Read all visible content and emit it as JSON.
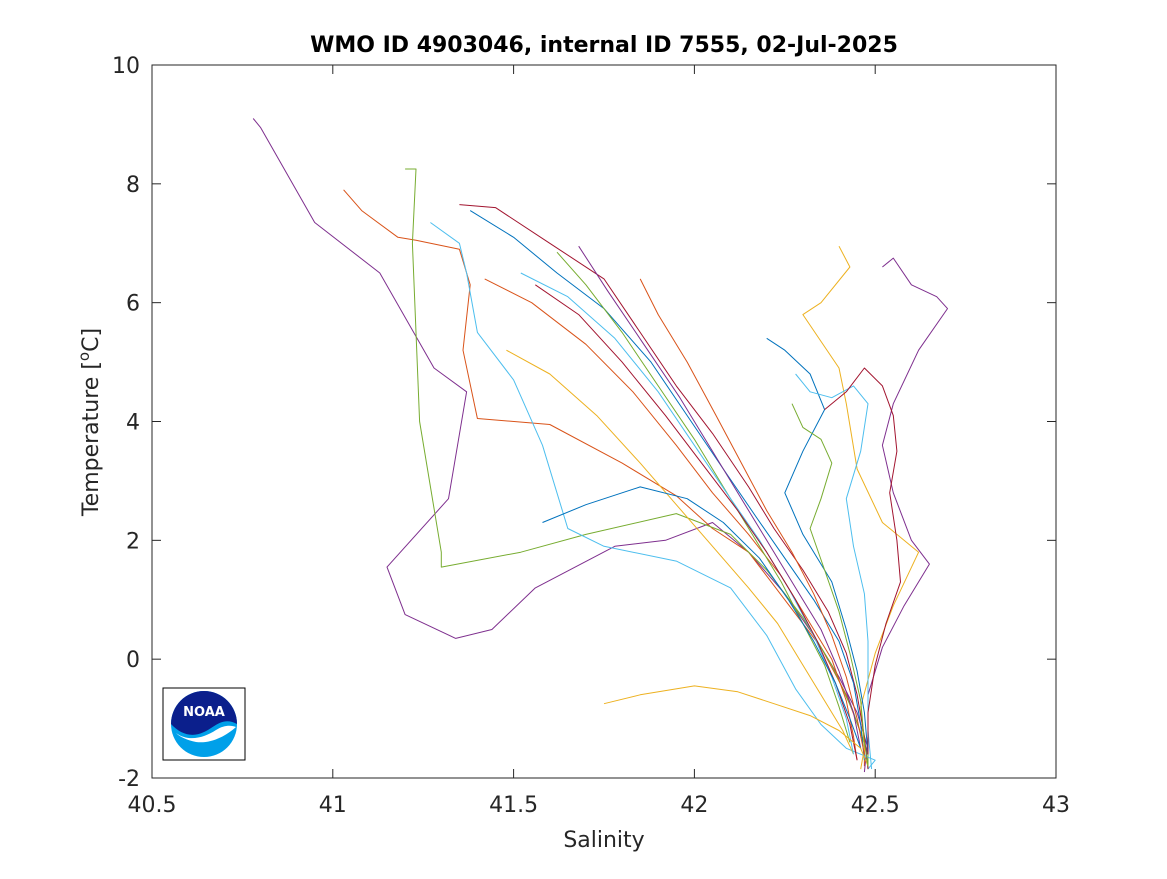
{
  "chart_data": {
    "type": "line",
    "title": "WMO ID 4903046, internal ID 7555, 02-Jul-2025",
    "xlabel": "Salinity",
    "ylabel_main": "Temperature [",
    "ylabel_sup": "o",
    "ylabel_end": "C]",
    "xlim": [
      40.5,
      43
    ],
    "ylim": [
      -2,
      10
    ],
    "xticks": [
      40.5,
      41,
      41.5,
      42,
      42.5,
      43
    ],
    "yticks": [
      -2,
      0,
      2,
      4,
      6,
      8,
      10
    ],
    "xtick_labels": [
      "40.5",
      "41",
      "41.5",
      "42",
      "42.5",
      "43"
    ],
    "ytick_labels": [
      "-2",
      "0",
      "2",
      "4",
      "6",
      "8",
      "10"
    ],
    "grid": false,
    "logo": {
      "name": "noaa-logo",
      "text": "NOAA"
    },
    "palette": [
      "#0072bd",
      "#d95319",
      "#edb120",
      "#7e2f8e",
      "#77ac30",
      "#4dbeee",
      "#a2142f"
    ],
    "series": [
      {
        "color": "#7e2f8e",
        "points": [
          [
            40.78,
            9.1
          ],
          [
            40.8,
            8.95
          ],
          [
            40.95,
            7.35
          ],
          [
            41.13,
            6.5
          ],
          [
            41.28,
            4.9
          ],
          [
            41.37,
            4.5
          ],
          [
            41.32,
            2.7
          ],
          [
            41.15,
            1.55
          ],
          [
            41.2,
            0.75
          ],
          [
            41.34,
            0.35
          ],
          [
            41.44,
            0.5
          ],
          [
            41.56,
            1.2
          ],
          [
            41.78,
            1.9
          ],
          [
            41.92,
            2.0
          ],
          [
            42.05,
            2.3
          ],
          [
            42.15,
            1.8
          ],
          [
            42.25,
            1.1
          ],
          [
            42.33,
            0.4
          ],
          [
            42.4,
            -0.3
          ],
          [
            42.45,
            -0.9
          ],
          [
            42.48,
            -1.5
          ],
          [
            42.47,
            -1.8
          ]
        ]
      },
      {
        "color": "#d95319",
        "points": [
          [
            41.03,
            7.9
          ],
          [
            41.08,
            7.55
          ],
          [
            41.18,
            7.1
          ],
          [
            41.23,
            7.05
          ],
          [
            41.35,
            6.9
          ],
          [
            41.38,
            6.3
          ],
          [
            41.36,
            5.2
          ],
          [
            41.4,
            4.05
          ],
          [
            41.6,
            3.95
          ],
          [
            41.8,
            3.3
          ],
          [
            41.95,
            2.75
          ],
          [
            42.05,
            2.2
          ],
          [
            42.15,
            1.8
          ],
          [
            42.25,
            1.0
          ],
          [
            42.35,
            0.2
          ],
          [
            42.42,
            -0.6
          ],
          [
            42.47,
            -1.4
          ],
          [
            42.47,
            -1.8
          ]
        ]
      },
      {
        "color": "#77ac30",
        "points": [
          [
            41.2,
            8.25
          ],
          [
            41.23,
            8.25
          ],
          [
            41.22,
            7.0
          ],
          [
            41.24,
            4.0
          ],
          [
            41.3,
            1.8
          ],
          [
            41.3,
            1.55
          ],
          [
            41.52,
            1.8
          ],
          [
            41.7,
            2.1
          ],
          [
            41.95,
            2.45
          ],
          [
            42.1,
            2.1
          ],
          [
            42.2,
            1.5
          ],
          [
            42.3,
            0.7
          ],
          [
            42.38,
            -0.1
          ],
          [
            42.44,
            -0.9
          ],
          [
            42.48,
            -1.6
          ],
          [
            42.48,
            -1.85
          ]
        ]
      },
      {
        "color": "#edb120",
        "points": [
          [
            42.4,
            6.95
          ],
          [
            42.43,
            6.6
          ],
          [
            42.35,
            6.0
          ],
          [
            42.3,
            5.8
          ],
          [
            42.4,
            4.9
          ],
          [
            42.42,
            4.3
          ],
          [
            42.45,
            3.2
          ],
          [
            42.52,
            2.3
          ],
          [
            42.62,
            1.8
          ],
          [
            42.55,
            0.9
          ],
          [
            42.5,
            0.1
          ],
          [
            42.46,
            -0.8
          ],
          [
            42.47,
            -1.5
          ],
          [
            42.46,
            -1.85
          ]
        ]
      },
      {
        "color": "#7e2f8e",
        "points": [
          [
            42.52,
            6.6
          ],
          [
            42.55,
            6.75
          ],
          [
            42.6,
            6.3
          ],
          [
            42.67,
            6.1
          ],
          [
            42.7,
            5.9
          ],
          [
            42.62,
            5.2
          ],
          [
            42.55,
            4.3
          ],
          [
            42.52,
            3.6
          ],
          [
            42.55,
            2.8
          ],
          [
            42.6,
            2.0
          ],
          [
            42.65,
            1.6
          ],
          [
            42.58,
            0.9
          ],
          [
            42.52,
            0.2
          ],
          [
            42.48,
            -0.6
          ],
          [
            42.48,
            -1.3
          ],
          [
            42.47,
            -1.9
          ]
        ]
      },
      {
        "color": "#0072bd",
        "points": [
          [
            42.2,
            5.4
          ],
          [
            42.25,
            5.2
          ],
          [
            42.32,
            4.8
          ],
          [
            42.36,
            4.2
          ],
          [
            42.3,
            3.5
          ],
          [
            42.25,
            2.8
          ],
          [
            42.3,
            2.1
          ],
          [
            42.38,
            1.3
          ],
          [
            42.42,
            0.5
          ],
          [
            42.45,
            -0.2
          ],
          [
            42.47,
            -0.9
          ],
          [
            42.48,
            -1.6
          ]
        ]
      },
      {
        "color": "#4dbeee",
        "points": [
          [
            41.27,
            7.35
          ],
          [
            41.35,
            7.0
          ],
          [
            41.37,
            6.5
          ],
          [
            41.4,
            5.5
          ],
          [
            41.5,
            4.7
          ],
          [
            41.58,
            3.6
          ],
          [
            41.65,
            2.2
          ],
          [
            41.75,
            1.9
          ],
          [
            41.95,
            1.65
          ],
          [
            42.1,
            1.2
          ],
          [
            42.2,
            0.4
          ],
          [
            42.28,
            -0.5
          ],
          [
            42.35,
            -1.1
          ],
          [
            42.42,
            -1.5
          ],
          [
            42.5,
            -1.7
          ],
          [
            42.48,
            -1.85
          ]
        ]
      },
      {
        "color": "#a2142f",
        "points": [
          [
            41.35,
            7.65
          ],
          [
            41.45,
            7.6
          ],
          [
            41.6,
            7.0
          ],
          [
            41.75,
            6.4
          ],
          [
            41.85,
            5.5
          ],
          [
            41.95,
            4.6
          ],
          [
            42.05,
            3.8
          ],
          [
            42.15,
            2.9
          ],
          [
            42.22,
            2.2
          ],
          [
            42.3,
            1.5
          ],
          [
            42.37,
            0.8
          ],
          [
            42.42,
            0.1
          ],
          [
            42.45,
            -0.6
          ],
          [
            42.47,
            -1.3
          ],
          [
            42.48,
            -1.85
          ]
        ]
      },
      {
        "color": "#0072bd",
        "points": [
          [
            41.38,
            7.55
          ],
          [
            41.5,
            7.1
          ],
          [
            41.62,
            6.5
          ],
          [
            41.75,
            5.9
          ],
          [
            41.88,
            5.0
          ],
          [
            41.98,
            4.1
          ],
          [
            42.08,
            3.2
          ],
          [
            42.17,
            2.4
          ],
          [
            42.25,
            1.7
          ],
          [
            42.33,
            1.0
          ],
          [
            42.4,
            0.3
          ],
          [
            42.44,
            -0.4
          ],
          [
            42.46,
            -1.1
          ],
          [
            42.47,
            -1.7
          ]
        ]
      },
      {
        "color": "#d95319",
        "points": [
          [
            41.42,
            6.4
          ],
          [
            41.55,
            6.0
          ],
          [
            41.7,
            5.3
          ],
          [
            41.83,
            4.5
          ],
          [
            41.95,
            3.6
          ],
          [
            42.05,
            2.8
          ],
          [
            42.15,
            2.1
          ],
          [
            42.24,
            1.4
          ],
          [
            42.32,
            0.6
          ],
          [
            42.38,
            0.0
          ],
          [
            42.42,
            -0.7
          ],
          [
            42.44,
            -1.3
          ],
          [
            42.45,
            -1.7
          ]
        ]
      },
      {
        "color": "#edb120",
        "points": [
          [
            41.48,
            5.2
          ],
          [
            41.6,
            4.8
          ],
          [
            41.73,
            4.1
          ],
          [
            41.85,
            3.3
          ],
          [
            41.95,
            2.6
          ],
          [
            42.05,
            1.9
          ],
          [
            42.15,
            1.2
          ],
          [
            42.23,
            0.6
          ],
          [
            42.3,
            -0.1
          ],
          [
            42.36,
            -0.7
          ],
          [
            42.41,
            -1.2
          ],
          [
            42.44,
            -1.6
          ]
        ]
      },
      {
        "color": "#77ac30",
        "points": [
          [
            41.62,
            6.85
          ],
          [
            41.7,
            6.3
          ],
          [
            41.8,
            5.5
          ],
          [
            41.9,
            4.6
          ],
          [
            42.0,
            3.7
          ],
          [
            42.08,
            2.9
          ],
          [
            42.16,
            2.1
          ],
          [
            42.24,
            1.3
          ],
          [
            42.3,
            0.6
          ],
          [
            42.36,
            -0.1
          ],
          [
            42.4,
            -0.8
          ],
          [
            42.43,
            -1.4
          ]
        ]
      },
      {
        "color": "#4dbeee",
        "points": [
          [
            41.52,
            6.5
          ],
          [
            41.65,
            6.1
          ],
          [
            41.78,
            5.4
          ],
          [
            41.9,
            4.5
          ],
          [
            42.0,
            3.6
          ],
          [
            42.1,
            2.7
          ],
          [
            42.18,
            2.0
          ],
          [
            42.26,
            1.2
          ],
          [
            42.33,
            0.4
          ],
          [
            42.38,
            -0.3
          ],
          [
            42.42,
            -1.0
          ],
          [
            42.44,
            -1.6
          ]
        ]
      },
      {
        "color": "#7e2f8e",
        "points": [
          [
            41.68,
            6.95
          ],
          [
            41.76,
            6.2
          ],
          [
            41.86,
            5.3
          ],
          [
            41.96,
            4.4
          ],
          [
            42.05,
            3.5
          ],
          [
            42.13,
            2.7
          ],
          [
            42.2,
            2.0
          ],
          [
            42.28,
            1.2
          ],
          [
            42.35,
            0.5
          ],
          [
            42.4,
            -0.2
          ],
          [
            42.44,
            -0.9
          ],
          [
            42.46,
            -1.5
          ]
        ]
      },
      {
        "color": "#a2142f",
        "points": [
          [
            41.56,
            6.3
          ],
          [
            41.68,
            5.8
          ],
          [
            41.8,
            5.0
          ],
          [
            41.92,
            4.1
          ],
          [
            42.02,
            3.3
          ],
          [
            42.12,
            2.5
          ],
          [
            42.2,
            1.8
          ],
          [
            42.28,
            1.0
          ],
          [
            42.34,
            0.3
          ],
          [
            42.39,
            -0.4
          ],
          [
            42.43,
            -1.1
          ],
          [
            42.45,
            -1.7
          ]
        ]
      },
      {
        "color": "#0072bd",
        "points": [
          [
            41.58,
            2.3
          ],
          [
            41.7,
            2.6
          ],
          [
            41.85,
            2.9
          ],
          [
            41.98,
            2.7
          ],
          [
            42.08,
            2.3
          ],
          [
            42.18,
            1.7
          ],
          [
            42.26,
            1.0
          ],
          [
            42.33,
            0.3
          ],
          [
            42.39,
            -0.4
          ],
          [
            42.43,
            -1.0
          ],
          [
            42.46,
            -1.5
          ]
        ]
      },
      {
        "color": "#edb120",
        "points": [
          [
            41.75,
            -0.75
          ],
          [
            41.85,
            -0.6
          ],
          [
            42.0,
            -0.45
          ],
          [
            42.12,
            -0.55
          ],
          [
            42.22,
            -0.75
          ],
          [
            42.32,
            -0.95
          ],
          [
            42.4,
            -1.2
          ],
          [
            42.46,
            -1.5
          ],
          [
            42.48,
            -1.8
          ]
        ]
      },
      {
        "color": "#d95319",
        "points": [
          [
            41.85,
            6.4
          ],
          [
            41.9,
            5.8
          ],
          [
            41.98,
            5.0
          ],
          [
            42.06,
            4.1
          ],
          [
            42.13,
            3.3
          ],
          [
            42.2,
            2.5
          ],
          [
            42.27,
            1.8
          ],
          [
            42.33,
            1.1
          ],
          [
            42.38,
            0.4
          ],
          [
            42.42,
            -0.3
          ],
          [
            42.45,
            -1.0
          ],
          [
            42.47,
            -1.6
          ]
        ]
      },
      {
        "color": "#77ac30",
        "points": [
          [
            42.27,
            4.3
          ],
          [
            42.3,
            3.9
          ],
          [
            42.35,
            3.7
          ],
          [
            42.38,
            3.3
          ],
          [
            42.35,
            2.7
          ],
          [
            42.32,
            2.2
          ],
          [
            42.36,
            1.5
          ],
          [
            42.4,
            0.8
          ],
          [
            42.43,
            0.1
          ],
          [
            42.46,
            -0.7
          ],
          [
            42.47,
            -1.4
          ],
          [
            42.48,
            -1.8
          ]
        ]
      },
      {
        "color": "#4dbeee",
        "points": [
          [
            42.28,
            4.8
          ],
          [
            42.32,
            4.5
          ],
          [
            42.38,
            4.4
          ],
          [
            42.44,
            4.6
          ],
          [
            42.48,
            4.3
          ],
          [
            42.46,
            3.5
          ],
          [
            42.42,
            2.7
          ],
          [
            42.44,
            1.9
          ],
          [
            42.47,
            1.1
          ],
          [
            42.48,
            0.3
          ],
          [
            42.48,
            -0.5
          ],
          [
            42.48,
            -1.2
          ],
          [
            42.49,
            -1.85
          ]
        ]
      },
      {
        "color": "#a2142f",
        "points": [
          [
            42.36,
            4.2
          ],
          [
            42.42,
            4.5
          ],
          [
            42.47,
            4.9
          ],
          [
            42.52,
            4.6
          ],
          [
            42.55,
            4.1
          ],
          [
            42.56,
            3.5
          ],
          [
            42.54,
            2.8
          ],
          [
            42.56,
            2.0
          ],
          [
            42.57,
            1.3
          ],
          [
            42.53,
            0.6
          ],
          [
            42.5,
            -0.1
          ],
          [
            42.48,
            -0.9
          ],
          [
            42.48,
            -1.6
          ]
        ]
      }
    ]
  }
}
